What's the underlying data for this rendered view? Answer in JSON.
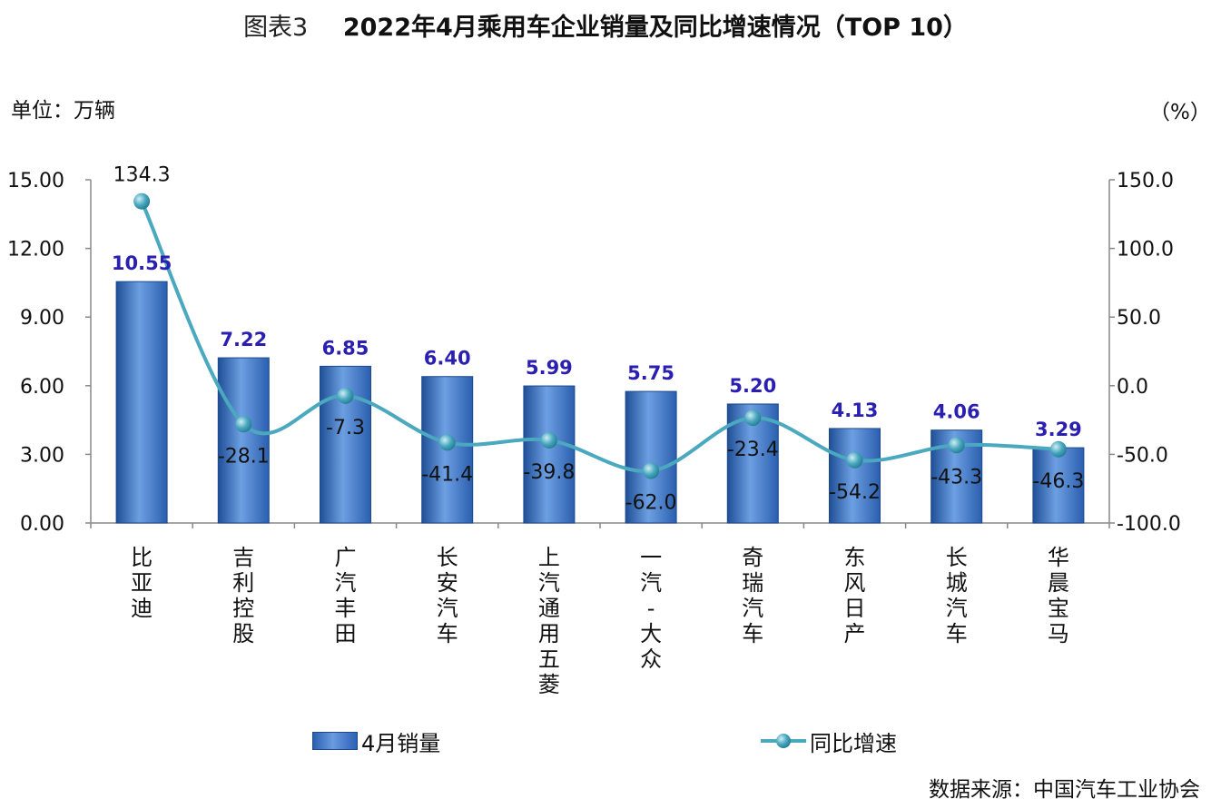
{
  "title": {
    "prefix": "图表3",
    "main": "2022年4月乘用车企业销量及同比增速情况（TOP 10）"
  },
  "axes": {
    "left_unit": "单位：万辆",
    "right_unit": "（%）"
  },
  "legend": {
    "bar_label": "4月销量",
    "line_label": "同比增速"
  },
  "source": "数据来源：中国汽车工业协会",
  "colors": {
    "bar_dark": "#1f4f96",
    "bar_light": "#6d9fe2",
    "bar_label": "#2a1fb0",
    "line": "#4aa8bf",
    "marker": "#3fa3bd"
  },
  "chart_data": {
    "type": "bar",
    "categories": [
      "比亚迪",
      "吉利控股",
      "广汽丰田",
      "长安汽车",
      "上汽通用五菱",
      "一汽-大众",
      "奇瑞汽车",
      "东风日产",
      "长城汽车",
      "华晨宝马"
    ],
    "series": [
      {
        "name": "4月销量",
        "type": "bar",
        "axis": "left",
        "values": [
          10.55,
          7.22,
          6.85,
          6.4,
          5.99,
          5.75,
          5.2,
          4.13,
          4.06,
          3.29
        ],
        "labels": [
          "10.55",
          "7.22",
          "6.85",
          "6.40",
          "5.99",
          "5.75",
          "5.20",
          "4.13",
          "4.06",
          "3.29"
        ]
      },
      {
        "name": "同比增速",
        "type": "line",
        "axis": "right",
        "values": [
          134.3,
          -28.1,
          -7.3,
          -41.4,
          -39.8,
          -62.0,
          -23.4,
          -54.2,
          -43.3,
          -46.3
        ],
        "labels": [
          "134.3",
          "-28.1",
          "-7.3",
          "-41.4",
          "-39.8",
          "-62.0",
          "-23.4",
          "-54.2",
          "-43.3",
          "-46.3"
        ]
      }
    ],
    "y_left": {
      "range": [
        0,
        15
      ],
      "ticks": [
        "0.00",
        "3.00",
        "6.00",
        "9.00",
        "12.00",
        "15.00"
      ],
      "tick_values": [
        0,
        3,
        6,
        9,
        12,
        15
      ]
    },
    "y_right": {
      "range": [
        -100,
        150
      ],
      "ticks": [
        "-100.0",
        "-50.0",
        "0.0",
        "50.0",
        "100.0",
        "150.0"
      ],
      "tick_values": [
        -100,
        -50,
        0,
        50,
        100,
        150
      ]
    },
    "grid": false,
    "legend_position": "bottom"
  }
}
